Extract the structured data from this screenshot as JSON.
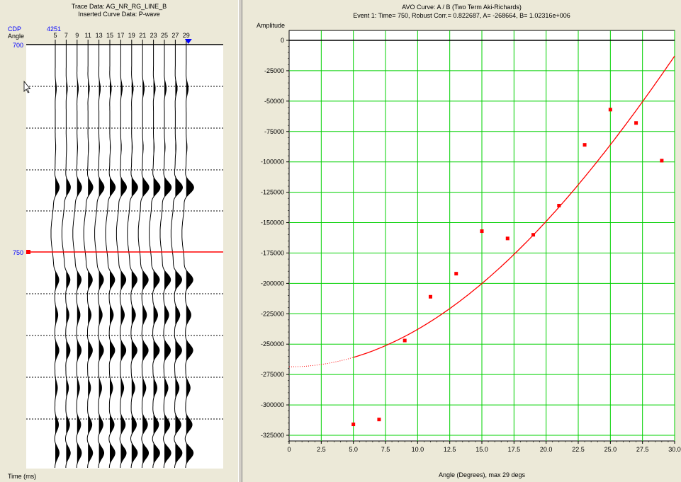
{
  "left_panel": {
    "title_line1": "Trace Data: AG_NR_RG_LINE_B",
    "title_line2": "Inserted Curve Data:  P-wave",
    "cdp_label": "CDP",
    "cdp_value": "4251",
    "angle_label": "Angle",
    "angles": [
      "5",
      "7",
      "9",
      "11",
      "13",
      "15",
      "17",
      "19",
      "21",
      "23",
      "25",
      "27",
      "29"
    ],
    "time_top": "700",
    "time_event": "750",
    "time_axis_label": "Time (ms)"
  },
  "colors": {
    "event_line": "#ff0000",
    "grid": "#00d000",
    "blue_label": "#0000ff",
    "marker": "#0000ff"
  },
  "chart_data": {
    "type": "scatter",
    "title": "AVO Curve: A / B (Two Term Aki-Richards)",
    "subtitle": "Event 1: Time= 750, Robust Corr.= 0.822687, A= -268664, B= 1.02316e+006",
    "xlabel": "Angle (Degrees), max 29 degs",
    "ylabel": "Amplitude",
    "xlim": [
      0,
      30
    ],
    "ylim": [
      -335000,
      0
    ],
    "x_ticks": [
      "0",
      "2.5",
      "5.0",
      "7.5",
      "10.0",
      "12.5",
      "15.0",
      "17.5",
      "20.0",
      "22.5",
      "25.0",
      "27.5",
      "30.0"
    ],
    "y_ticks": [
      "0",
      "-25000",
      "-50000",
      "-75000",
      "-100000",
      "-125000",
      "-150000",
      "-175000",
      "-200000",
      "-225000",
      "-250000",
      "-275000",
      "-300000",
      "-325000"
    ],
    "grid": true,
    "points": [
      {
        "x": 5,
        "y": -316000
      },
      {
        "x": 7,
        "y": -312000
      },
      {
        "x": 9,
        "y": -247000
      },
      {
        "x": 11,
        "y": -211000
      },
      {
        "x": 13,
        "y": -192000
      },
      {
        "x": 15,
        "y": -157000
      },
      {
        "x": 17,
        "y": -163000
      },
      {
        "x": 19,
        "y": -160000
      },
      {
        "x": 21,
        "y": -136000
      },
      {
        "x": 23,
        "y": -86000
      },
      {
        "x": 25,
        "y": -57000
      },
      {
        "x": 27,
        "y": -68000
      },
      {
        "x": 29,
        "y": -99000
      }
    ],
    "fit": {
      "A": -268664,
      "B": 1023160,
      "x_min": 0,
      "x_max": 30,
      "dotted_below": 5
    }
  }
}
